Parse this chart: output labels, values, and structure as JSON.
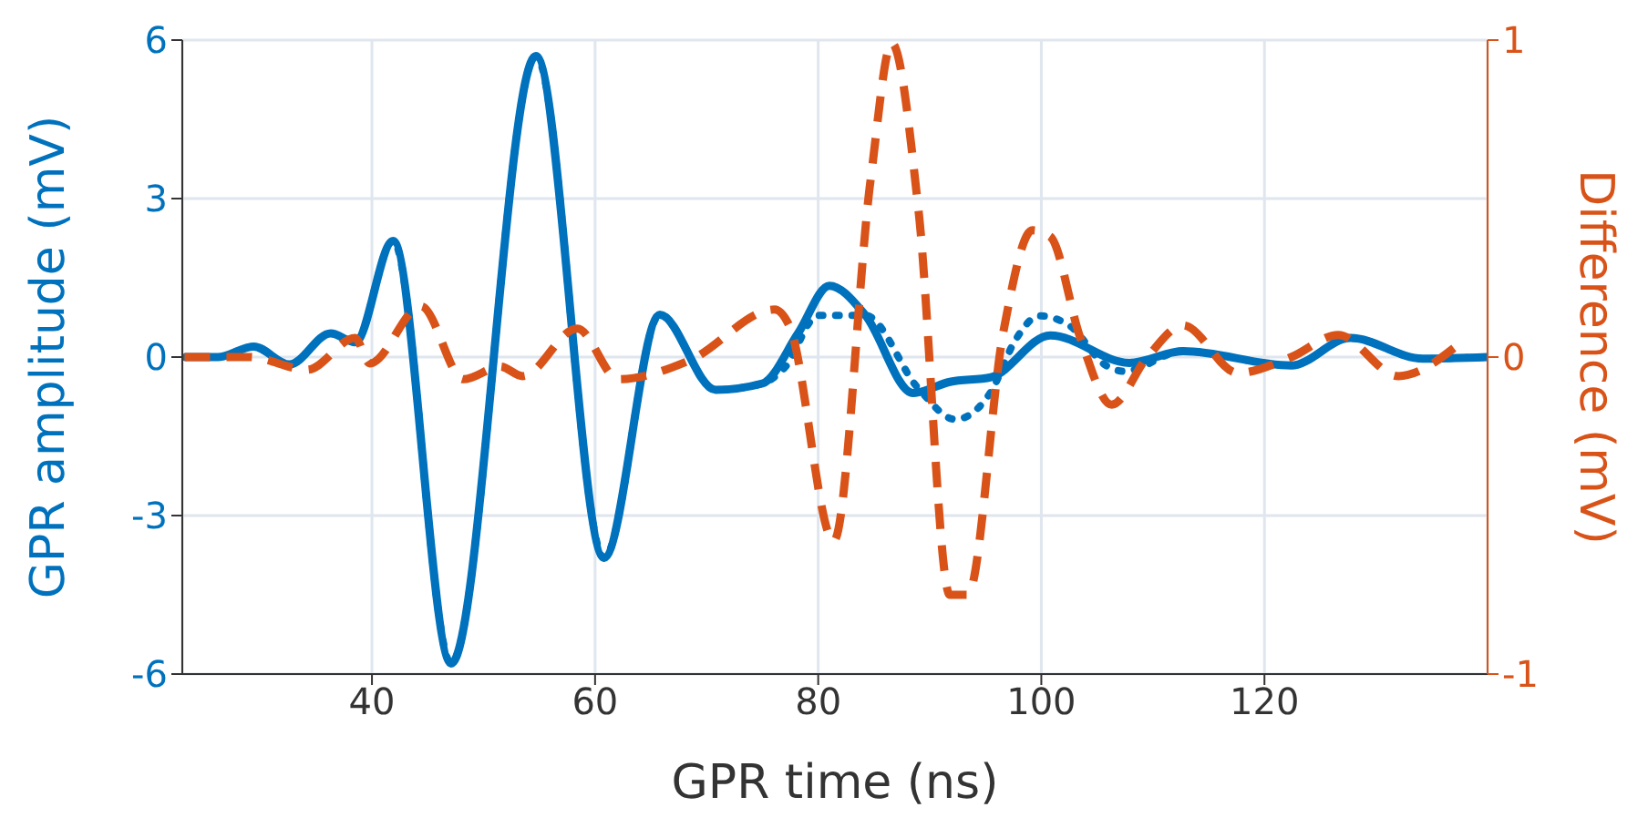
{
  "chart_data": {
    "type": "line",
    "xlabel": "GPR time (ns)",
    "ylabel": "GPR amplitude (mV)",
    "y2label": "Difference (mV)",
    "xlim": [
      23,
      140
    ],
    "xticks": [
      40,
      60,
      80,
      100,
      120
    ],
    "ylim": [
      -6,
      6
    ],
    "yticks": [
      -6,
      -3,
      0,
      3,
      6
    ],
    "y2lim": [
      -1,
      1
    ],
    "y2ticks": [
      -1,
      0,
      1
    ],
    "grid": true,
    "legend": false,
    "marker": "none",
    "series": [
      {
        "color": "#0072bd",
        "line_style": "solid",
        "axis": "y",
        "x": [
          23.2,
          26.2,
          29.4,
          32.6,
          36.3,
          38.5,
          41.9,
          47.1,
          54.7,
          60.8,
          65.8,
          70.8,
          75,
          78.2,
          81,
          84.2,
          88.5,
          91.8,
          95.5,
          100.8,
          107.9,
          112.7,
          122.4,
          127.7,
          134.2,
          140
        ],
        "values": [
          0,
          0,
          0.2,
          -0.14,
          0.45,
          0.28,
          2.2,
          -5.8,
          5.7,
          -3.8,
          0.8,
          -0.62,
          -0.5,
          0.45,
          1.35,
          0.8,
          -0.68,
          -0.47,
          -0.38,
          0.41,
          -0.11,
          0.11,
          -0.16,
          0.36,
          -0.03,
          0
        ]
      },
      {
        "color": "#0072bd",
        "line_style": "dotted",
        "axis": "y",
        "x": [
          23.2,
          26.2,
          29.4,
          32.6,
          36.3,
          38.5,
          41.9,
          47.1,
          54.7,
          60.8,
          65.8,
          70.8,
          75,
          77,
          80,
          84.2,
          89,
          92.3,
          95.5,
          97.7,
          99.8,
          102.5,
          105.8,
          107.4,
          112.7,
          122.4,
          127.7,
          134.2,
          140
        ],
        "values": [
          0,
          0,
          0.2,
          -0.14,
          0.45,
          0.28,
          2.2,
          -5.8,
          5.7,
          -3.8,
          0.8,
          -0.62,
          -0.5,
          -0.2,
          0.79,
          0.79,
          -0.6,
          -1.18,
          -0.65,
          0.33,
          0.78,
          0.6,
          -0.16,
          -0.27,
          0.11,
          -0.16,
          0.36,
          -0.03,
          0
        ]
      },
      {
        "color": "#d95319",
        "line_style": "dashed",
        "axis": "y2",
        "x": [
          23.2,
          29,
          34.2,
          38.5,
          39.8,
          44.4,
          48.2,
          51.5,
          53.5,
          58.4,
          62.1,
          68.5,
          76.1,
          77.4,
          81.4,
          84.7,
          86.6,
          89,
          91.8,
          93.4,
          96.6,
          99.2,
          100.8,
          103.5,
          106.3,
          109.5,
          112.7,
          117.6,
          122.4,
          126.6,
          132,
          137.4
        ],
        "values": [
          0,
          0,
          -0.04,
          0.06,
          -0.02,
          0.16,
          -0.07,
          -0.03,
          -0.06,
          0.09,
          -0.07,
          -0.01,
          0.15,
          0.1,
          -0.58,
          0.56,
          0.99,
          0.46,
          -0.75,
          -0.75,
          0.08,
          0.4,
          0.38,
          0.06,
          -0.15,
          0,
          0.1,
          -0.05,
          0,
          0.07,
          -0.06,
          0.04
        ]
      }
    ]
  }
}
